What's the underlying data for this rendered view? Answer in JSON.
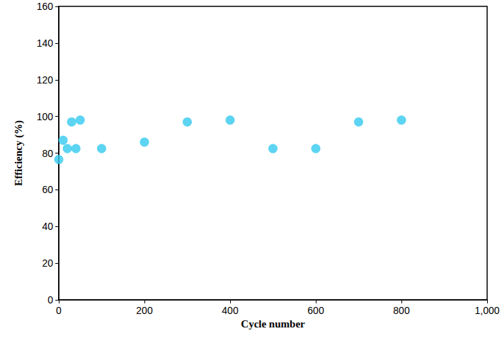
{
  "chart_data": {
    "type": "scatter",
    "xlabel": "Cycle number",
    "ylabel": "Efficiency (%)",
    "x": [
      0,
      10,
      20,
      30,
      40,
      50,
      100,
      200,
      300,
      400,
      500,
      600,
      700,
      800
    ],
    "values": [
      76.5,
      87,
      82.5,
      97,
      82.5,
      98,
      82.5,
      86,
      97,
      98,
      82.5,
      82.5,
      97,
      98
    ],
    "color": "#33c9ef",
    "marker": "circle",
    "xlim": [
      0,
      1000
    ],
    "xticks": [
      0,
      200,
      400,
      600,
      800,
      1000
    ],
    "ylim": [
      0,
      160
    ],
    "yticks": [
      0,
      20,
      40,
      60,
      80,
      100,
      120,
      140,
      160
    ],
    "grid": false
  }
}
